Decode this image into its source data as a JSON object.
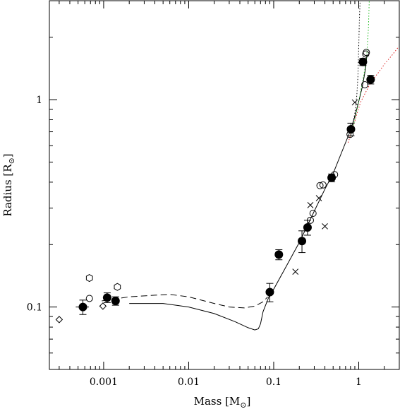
{
  "chart_data": {
    "type": "scatter",
    "title": "",
    "xlabel": "Mass [M",
    "xlabel_sub": "⊙",
    "xlabel_close": "]",
    "ylabel": "Radius [R",
    "ylabel_sub": "⊙",
    "ylabel_close": "]",
    "x_scale": "log",
    "y_scale": "log",
    "xlim": [
      0.00023,
      3.0
    ],
    "ylim": [
      0.05,
      3.0
    ],
    "grid": false,
    "legend": "none",
    "x_ticks": [
      {
        "value": 0.001,
        "label": "0.001"
      },
      {
        "value": 0.01,
        "label": "0.01"
      },
      {
        "value": 0.1,
        "label": "0.1"
      },
      {
        "value": 1,
        "label": "1"
      }
    ],
    "y_ticks": [
      {
        "value": 0.1,
        "label": "0.1"
      },
      {
        "value": 1,
        "label": "1"
      }
    ],
    "series": [
      {
        "marker": "filled-circle",
        "points": [
          {
            "x": 0.00057,
            "y": 0.1,
            "xerr": 0.0001,
            "yerr": 0.008
          },
          {
            "x": 0.0011,
            "y": 0.111,
            "xerr": 0.00012,
            "yerr": 0.006
          },
          {
            "x": 0.00138,
            "y": 0.107,
            "xerr": 0.00012,
            "yerr": 0.005
          },
          {
            "x": 0.09,
            "y": 0.118,
            "xerr": 0.006,
            "yerr": 0.012
          },
          {
            "x": 0.115,
            "y": 0.179,
            "xerr": 0.008,
            "yerr": 0.01
          },
          {
            "x": 0.215,
            "y": 0.208,
            "xerr": 0.012,
            "yerr": 0.025
          },
          {
            "x": 0.25,
            "y": 0.242,
            "xerr": 0.012,
            "yerr": 0.02
          },
          {
            "x": 0.48,
            "y": 0.42,
            "xerr": 0.02,
            "yerr": 0.018
          },
          {
            "x": 0.81,
            "y": 0.72,
            "xerr": 0.03,
            "yerr": 0.05
          },
          {
            "x": 1.12,
            "y": 1.52,
            "xerr": 0.04,
            "yerr": 0.06
          },
          {
            "x": 1.38,
            "y": 1.25,
            "xerr": 0.04,
            "yerr": 0.06
          }
        ]
      },
      {
        "marker": "open-circle",
        "points": [
          {
            "x": 0.00068,
            "y": 0.11
          },
          {
            "x": 0.27,
            "y": 0.262
          },
          {
            "x": 0.29,
            "y": 0.283
          },
          {
            "x": 0.35,
            "y": 0.385
          },
          {
            "x": 0.38,
            "y": 0.388
          },
          {
            "x": 0.52,
            "y": 0.435
          },
          {
            "x": 0.79,
            "y": 0.68
          },
          {
            "x": 1.18,
            "y": 1.18
          },
          {
            "x": 1.21,
            "y": 1.66
          },
          {
            "x": 1.23,
            "y": 1.69
          }
        ]
      },
      {
        "marker": "open-hexagon",
        "points": [
          {
            "x": 0.00068,
            "y": 0.138
          },
          {
            "x": 0.00145,
            "y": 0.125
          }
        ]
      },
      {
        "marker": "diamond",
        "points": [
          {
            "x": 0.0003,
            "y": 0.087
          },
          {
            "x": 0.00098,
            "y": 0.101
          }
        ]
      },
      {
        "marker": "cross",
        "points": [
          {
            "x": 0.18,
            "y": 0.148
          },
          {
            "x": 0.27,
            "y": 0.31
          },
          {
            "x": 0.34,
            "y": 0.335
          },
          {
            "x": 0.4,
            "y": 0.245
          },
          {
            "x": 0.9,
            "y": 0.97
          }
        ]
      }
    ],
    "curves": [
      {
        "style": "solid",
        "color": "#000000",
        "points": [
          [
            0.002,
            0.104
          ],
          [
            0.005,
            0.104
          ],
          [
            0.01,
            0.1
          ],
          [
            0.02,
            0.093
          ],
          [
            0.035,
            0.085
          ],
          [
            0.05,
            0.0795
          ],
          [
            0.06,
            0.0775
          ],
          [
            0.066,
            0.0785
          ],
          [
            0.07,
            0.083
          ],
          [
            0.075,
            0.095
          ],
          [
            0.09,
            0.115
          ],
          [
            0.1,
            0.122
          ],
          [
            0.15,
            0.165
          ],
          [
            0.2,
            0.205
          ],
          [
            0.3,
            0.29
          ],
          [
            0.4,
            0.37
          ],
          [
            0.5,
            0.44
          ],
          [
            0.7,
            0.62
          ],
          [
            0.8,
            0.71
          ],
          [
            0.9,
            0.83
          ],
          [
            1.0,
            0.98
          ],
          [
            1.1,
            1.15
          ],
          [
            1.2,
            1.4
          ],
          [
            1.25,
            1.65
          ]
        ]
      },
      {
        "style": "dashed",
        "color": "#000000",
        "points": [
          [
            0.00095,
            0.107
          ],
          [
            0.002,
            0.112
          ],
          [
            0.004,
            0.114
          ],
          [
            0.006,
            0.115
          ],
          [
            0.01,
            0.112
          ],
          [
            0.02,
            0.104
          ],
          [
            0.03,
            0.1
          ],
          [
            0.045,
            0.099
          ],
          [
            0.06,
            0.101
          ],
          [
            0.075,
            0.106
          ],
          [
            0.085,
            0.112
          ]
        ]
      },
      {
        "style": "dotted",
        "color": "#000000",
        "points": [
          [
            0.8,
            0.69
          ],
          [
            0.85,
            0.76
          ],
          [
            0.9,
            0.86
          ],
          [
            0.95,
            1.05
          ],
          [
            0.98,
            1.3
          ],
          [
            1.0,
            1.8
          ],
          [
            1.02,
            2.5
          ],
          [
            1.04,
            3.0
          ]
        ]
      },
      {
        "style": "dotted",
        "color": "#22bb22",
        "points": [
          [
            0.8,
            0.665
          ],
          [
            0.9,
            0.8
          ],
          [
            1.0,
            0.98
          ],
          [
            1.1,
            1.2
          ],
          [
            1.2,
            1.45
          ],
          [
            1.25,
            1.7
          ],
          [
            1.3,
            2.2
          ],
          [
            1.33,
            3.0
          ]
        ]
      },
      {
        "style": "dotted",
        "color": "#dd2222",
        "points": [
          [
            0.75,
            0.62
          ],
          [
            0.85,
            0.73
          ],
          [
            0.95,
            0.85
          ],
          [
            1.05,
            0.97
          ],
          [
            1.2,
            1.08
          ],
          [
            1.4,
            1.22
          ],
          [
            1.7,
            1.35
          ],
          [
            2.0,
            1.48
          ],
          [
            2.5,
            1.65
          ],
          [
            2.95,
            1.8
          ]
        ]
      }
    ]
  }
}
